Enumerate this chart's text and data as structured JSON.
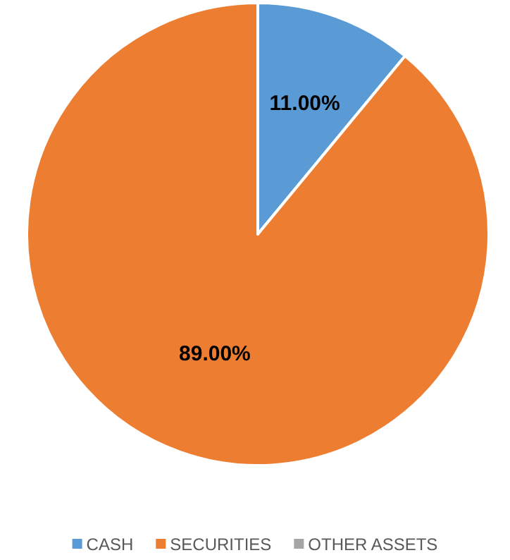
{
  "chart_data": {
    "type": "pie",
    "categories": [
      "CASH",
      "SECURITIES",
      "OTHER ASSETS"
    ],
    "values": [
      11,
      89,
      0
    ],
    "colors": [
      "#5b9bd5",
      "#ed7d31",
      "#a5a5a5"
    ],
    "value_labels": [
      "11.00%",
      "89.00%",
      null
    ],
    "legend": "bottom"
  }
}
